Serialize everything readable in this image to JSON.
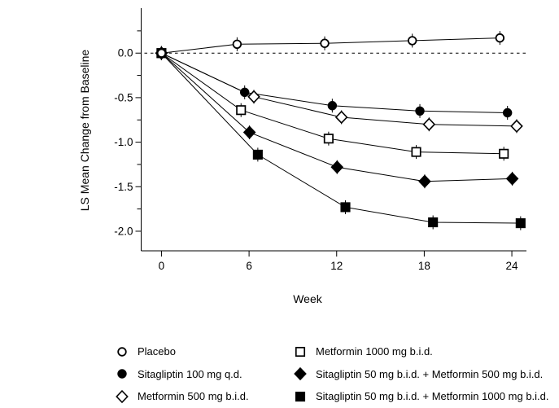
{
  "figure": {
    "background": "#ffffff",
    "ink": "#000000"
  },
  "chart_data": {
    "type": "line",
    "title": "",
    "xlabel": "Week",
    "ylabel": "LS Mean Change from Baseline",
    "x": [
      0,
      6,
      12,
      18,
      24
    ],
    "xtick_labels": [
      "0",
      "6",
      "12",
      "18",
      "24"
    ],
    "yticks": [
      0.0,
      -0.5,
      -1.0,
      -1.5,
      -2.0
    ],
    "ytick_labels": [
      "0.0",
      "-0.5",
      "-1.0",
      "-1.5",
      "-2.0"
    ],
    "yticks_minor": [
      0.25,
      -0.25,
      -0.75,
      -1.25,
      -1.75
    ],
    "xlim": [
      -1.39,
      25.0
    ],
    "ylim": [
      -2.22,
      0.505
    ],
    "zero_reference_line": true,
    "grid": false,
    "legend_position": "bottom",
    "series": [
      {
        "key": "placebo",
        "name": "Placebo",
        "marker": "circle-open",
        "x_offset": -0.82,
        "values": [
          0,
          0.1,
          0.11,
          0.14,
          0.17
        ]
      },
      {
        "key": "sitagliptin-100",
        "name": "Sitagliptin 100 mg q.d.",
        "marker": "circle-filled",
        "x_offset": -0.3,
        "values": [
          0,
          -0.44,
          -0.59,
          -0.65,
          -0.67
        ]
      },
      {
        "key": "metformin-500",
        "name": "Metformin 500 mg b.i.d.",
        "marker": "diamond-open",
        "x_offset": 0.33,
        "values": [
          0,
          -0.49,
          -0.72,
          -0.8,
          -0.82
        ]
      },
      {
        "key": "metformin-1000",
        "name": "Metformin 1000 mg b.i.d.",
        "marker": "square-open",
        "x_offset": -0.55,
        "values": [
          0,
          -0.64,
          -0.96,
          -1.11,
          -1.13
        ]
      },
      {
        "key": "sita50-met500",
        "name": "Sitagliptin 50 mg b.i.d. + Metformin 500 mg b.i.d.",
        "marker": "diamond-filled",
        "x_offset": 0.03,
        "values": [
          0,
          -0.89,
          -1.28,
          -1.44,
          -1.41
        ]
      },
      {
        "key": "sita50-met1000",
        "name": "Sitagliptin 50 mg b.i.d. + Metformin 1000 mg b.i.d.",
        "marker": "square-filled",
        "x_offset": 0.6,
        "values": [
          0,
          -1.14,
          -1.73,
          -1.9,
          -1.91
        ]
      }
    ]
  },
  "legend": {
    "columns": [
      [
        0,
        1,
        2
      ],
      [
        3,
        4,
        5
      ]
    ]
  }
}
